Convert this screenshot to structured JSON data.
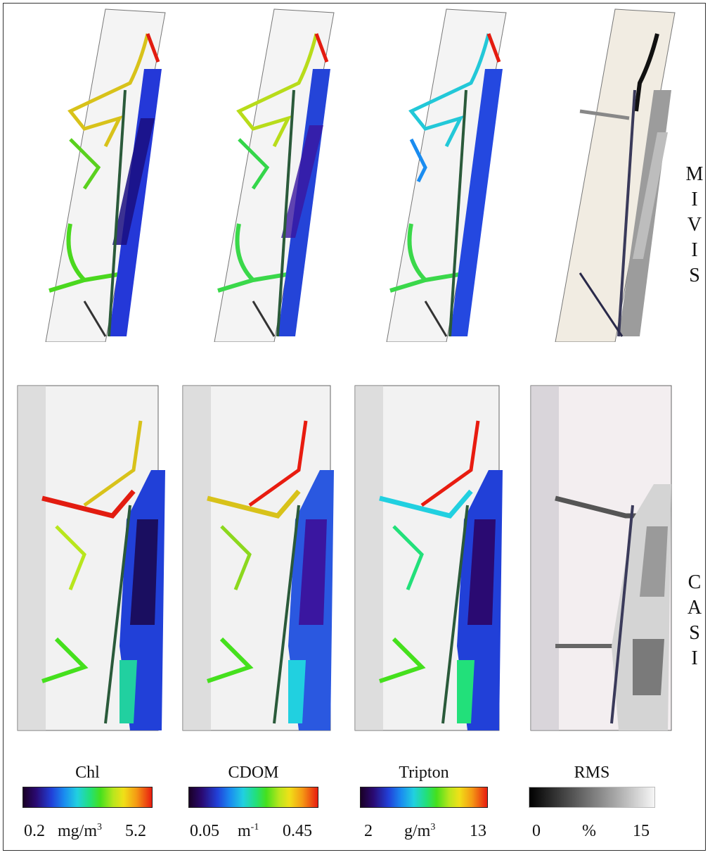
{
  "rows": [
    {
      "label": "MIVIS",
      "letters": [
        "M",
        "I",
        "V",
        "I",
        "S"
      ]
    },
    {
      "label": "CASI",
      "letters": [
        "C",
        "A",
        "S",
        "I"
      ]
    }
  ],
  "colorbars": [
    {
      "title": "Chl",
      "min": "0.2",
      "unit_base": "mg/m",
      "unit_sup": "3",
      "max": "5.2",
      "scale": "rainbow"
    },
    {
      "title": "CDOM",
      "min": "0.05",
      "unit_base": "m",
      "unit_sup": "-1",
      "max": "0.45",
      "scale": "rainbow"
    },
    {
      "title": "Tripton",
      "min": "2",
      "unit_base": "g/m",
      "unit_sup": "3",
      "max": "13",
      "scale": "rainbow"
    },
    {
      "title": "RMS",
      "min": "0",
      "unit_base": "%",
      "unit_sup": "",
      "max": "15",
      "scale": "grayscale"
    }
  ],
  "panels": [
    {
      "row": "MIVIS",
      "product": "Chl"
    },
    {
      "row": "MIVIS",
      "product": "CDOM"
    },
    {
      "row": "MIVIS",
      "product": "Tripton"
    },
    {
      "row": "MIVIS",
      "product": "RMS"
    },
    {
      "row": "CASI",
      "product": "Chl"
    },
    {
      "row": "CASI",
      "product": "CDOM"
    },
    {
      "row": "CASI",
      "product": "Tripton"
    },
    {
      "row": "CASI",
      "product": "RMS"
    }
  ]
}
